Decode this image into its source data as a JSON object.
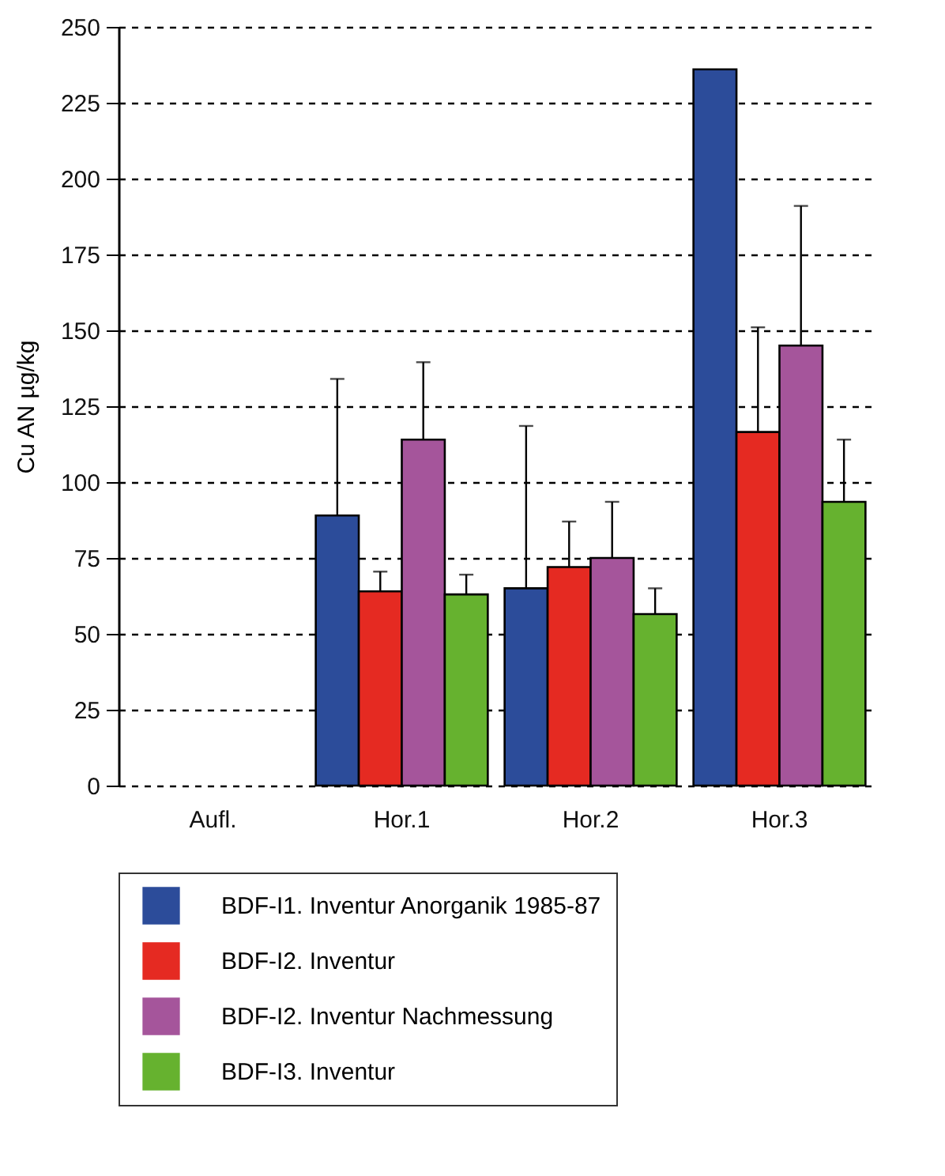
{
  "chart_data": {
    "type": "bar",
    "ylabel": "Cu AN µg/kg",
    "categories": [
      "Aufl.",
      "Hor.1",
      "Hor.2",
      "Hor.3"
    ],
    "series": [
      {
        "name": "BDF-I1. Inventur Anorganik 1985-87",
        "color": "#2c4c9a",
        "values": [
          null,
          89,
          65,
          236
        ],
        "errors": [
          null,
          [
            89,
            134
          ],
          [
            65,
            118.5
          ],
          null
        ]
      },
      {
        "name": "BDF-I2. Inventur",
        "color": "#e52a22",
        "values": [
          null,
          64,
          72,
          116.5
        ],
        "errors": [
          null,
          [
            64,
            70.5
          ],
          [
            72,
            87
          ],
          [
            116.5,
            151
          ]
        ]
      },
      {
        "name": "BDF-I2. Inventur Nachmessung",
        "color": "#a5559b",
        "values": [
          null,
          114,
          75,
          145
        ],
        "errors": [
          null,
          [
            114,
            139.5
          ],
          [
            75,
            93.5
          ],
          [
            145,
            191
          ]
        ]
      },
      {
        "name": "BDF-I3. Inventur",
        "color": "#66b22f",
        "values": [
          null,
          63,
          56.5,
          93.5
        ],
        "errors": [
          null,
          [
            63,
            69.5
          ],
          [
            56.5,
            65
          ],
          [
            93.5,
            114
          ]
        ]
      }
    ],
    "ylim": [
      0,
      250
    ],
    "yticks": [
      0,
      25,
      50,
      75,
      100,
      125,
      150,
      175,
      200,
      225,
      250
    ],
    "grid": "y",
    "legend": "bottom"
  }
}
